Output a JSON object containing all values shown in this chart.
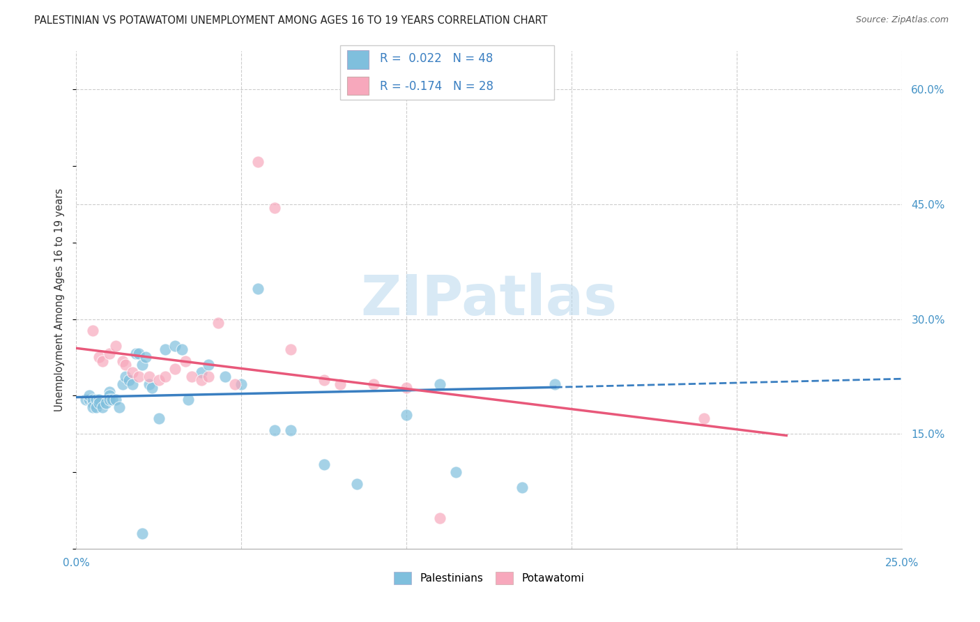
{
  "title": "PALESTINIAN VS POTAWATOMI UNEMPLOYMENT AMONG AGES 16 TO 19 YEARS CORRELATION CHART",
  "source": "Source: ZipAtlas.com",
  "ylabel": "Unemployment Among Ages 16 to 19 years",
  "xlim": [
    0.0,
    0.25
  ],
  "ylim": [
    0.0,
    0.65
  ],
  "x_ticks": [
    0.0,
    0.05,
    0.1,
    0.15,
    0.2,
    0.25
  ],
  "y_ticks_right": [
    0.15,
    0.3,
    0.45,
    0.6
  ],
  "y_tick_labels_right": [
    "15.0%",
    "30.0%",
    "45.0%",
    "60.0%"
  ],
  "color_blue": "#7fbfdd",
  "color_pink": "#f7a8bc",
  "color_blue_line": "#3a7fc1",
  "color_pink_line": "#e8587a",
  "watermark": "ZIPatlas",
  "blue_scatter_x": [
    0.003,
    0.004,
    0.004,
    0.005,
    0.005,
    0.005,
    0.006,
    0.006,
    0.007,
    0.007,
    0.008,
    0.009,
    0.01,
    0.01,
    0.01,
    0.011,
    0.012,
    0.013,
    0.014,
    0.015,
    0.016,
    0.017,
    0.018,
    0.019,
    0.02,
    0.021,
    0.022,
    0.023,
    0.025,
    0.027,
    0.03,
    0.032,
    0.034,
    0.038,
    0.04,
    0.045,
    0.05,
    0.055,
    0.06,
    0.065,
    0.075,
    0.085,
    0.1,
    0.11,
    0.115,
    0.135,
    0.145,
    0.02
  ],
  "blue_scatter_y": [
    0.195,
    0.195,
    0.2,
    0.19,
    0.195,
    0.185,
    0.195,
    0.185,
    0.195,
    0.19,
    0.185,
    0.19,
    0.205,
    0.2,
    0.195,
    0.195,
    0.195,
    0.185,
    0.215,
    0.225,
    0.22,
    0.215,
    0.255,
    0.255,
    0.24,
    0.25,
    0.215,
    0.21,
    0.17,
    0.26,
    0.265,
    0.26,
    0.195,
    0.23,
    0.24,
    0.225,
    0.215,
    0.34,
    0.155,
    0.155,
    0.11,
    0.085,
    0.175,
    0.215,
    0.1,
    0.08,
    0.215,
    0.02
  ],
  "pink_scatter_x": [
    0.005,
    0.007,
    0.008,
    0.01,
    0.012,
    0.014,
    0.015,
    0.017,
    0.019,
    0.022,
    0.025,
    0.027,
    0.03,
    0.033,
    0.035,
    0.038,
    0.04,
    0.043,
    0.048,
    0.055,
    0.06,
    0.065,
    0.075,
    0.08,
    0.09,
    0.1,
    0.11,
    0.19
  ],
  "pink_scatter_y": [
    0.285,
    0.25,
    0.245,
    0.255,
    0.265,
    0.245,
    0.24,
    0.23,
    0.225,
    0.225,
    0.22,
    0.225,
    0.235,
    0.245,
    0.225,
    0.22,
    0.225,
    0.295,
    0.215,
    0.505,
    0.445,
    0.26,
    0.22,
    0.215,
    0.215,
    0.21,
    0.04,
    0.17
  ],
  "blue_trend_x0": 0.0,
  "blue_trend_y0": 0.198,
  "blue_trend_x1_solid": 0.145,
  "blue_trend_y1_solid": 0.211,
  "blue_trend_x1_dash": 0.25,
  "blue_trend_y1_dash": 0.222,
  "pink_trend_x0": 0.0,
  "pink_trend_y0": 0.262,
  "pink_trend_x1": 0.215,
  "pink_trend_y1": 0.148
}
